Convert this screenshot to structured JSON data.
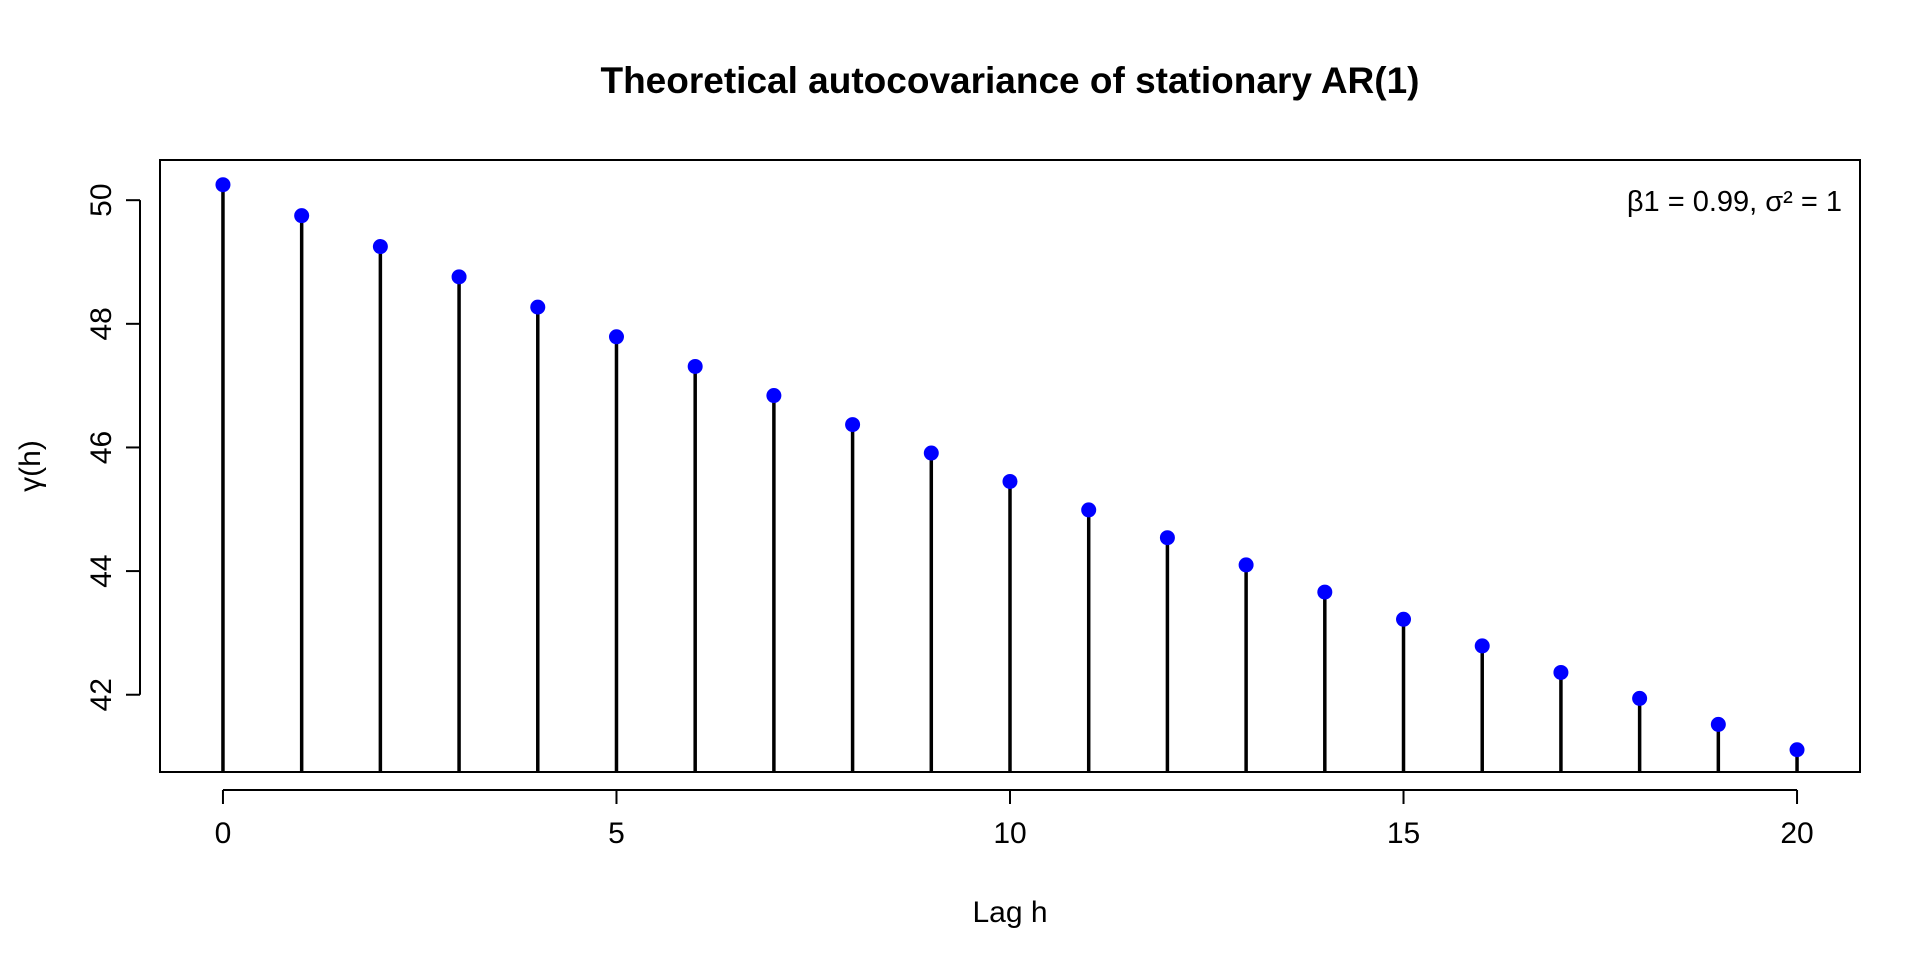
{
  "chart_data": {
    "type": "scatter",
    "style": "stem",
    "title": "Theoretical autocovariance of stationary AR(1)",
    "xlabel": "Lag h",
    "ylabel": "γ(h)",
    "annotation": "β1 = 0.99, σ² = 1",
    "annotation_position": "top-right",
    "xlim": [
      -0.8,
      20.8
    ],
    "ylim": [
      40.75,
      50.65
    ],
    "x_ticks": [
      0,
      5,
      10,
      15,
      20
    ],
    "y_ticks": [
      42,
      44,
      46,
      48,
      50
    ],
    "grid": false,
    "series": [
      {
        "x": [
          0,
          1,
          2,
          3,
          4,
          5,
          6,
          7,
          8,
          9,
          10,
          11,
          12,
          13,
          14,
          15,
          16,
          17,
          18,
          19,
          20
        ],
        "y": [
          50.25,
          49.75,
          49.25,
          48.76,
          48.27,
          47.79,
          47.31,
          46.84,
          46.37,
          45.91,
          45.45,
          44.99,
          44.54,
          44.1,
          43.66,
          43.22,
          42.79,
          42.36,
          41.94,
          41.52,
          41.11
        ],
        "marker_color": "#0000ff",
        "stem_color": "#000000"
      }
    ]
  }
}
